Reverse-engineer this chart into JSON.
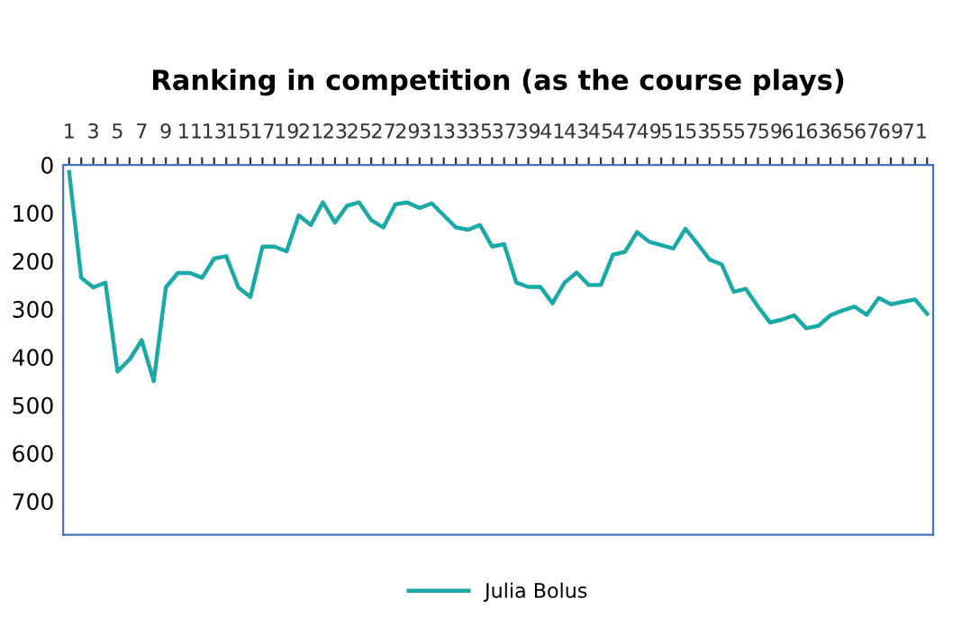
{
  "chart_data": {
    "type": "line",
    "title": "Ranking in competition (as the course plays)",
    "categories": [
      "1",
      null,
      "3",
      null,
      "5",
      null,
      "7",
      null,
      "9",
      null,
      "11",
      null,
      "13",
      null,
      "15",
      null,
      "17",
      null,
      "19",
      null,
      "21",
      null,
      "23",
      null,
      "25",
      null,
      "27",
      null,
      "29",
      null,
      "31",
      null,
      "33",
      null,
      "35",
      null,
      "37",
      null,
      "39",
      null,
      "41",
      null,
      "43",
      null,
      "45",
      null,
      "47",
      null,
      "49",
      null,
      "51",
      null,
      "53",
      null,
      "55",
      null,
      "57",
      null,
      "59",
      null,
      "61",
      null,
      "63",
      null,
      "65",
      null,
      "67",
      null,
      "69",
      null,
      "71",
      null
    ],
    "series": [
      {
        "name": "Julia Bolus",
        "color": "#1aaaa5",
        "values": [
          15,
          235,
          255,
          245,
          430,
          405,
          365,
          450,
          255,
          225,
          225,
          235,
          195,
          190,
          255,
          275,
          170,
          170,
          180,
          105,
          125,
          78,
          120,
          85,
          78,
          115,
          130,
          82,
          78,
          90,
          80,
          105,
          130,
          135,
          125,
          170,
          165,
          245,
          254,
          254,
          288,
          245,
          224,
          250,
          250,
          187,
          181,
          140,
          160,
          167,
          174,
          133,
          164,
          197,
          207,
          264,
          258,
          295,
          328,
          322,
          313,
          340,
          335,
          313,
          303,
          295,
          312,
          277,
          290,
          285,
          280,
          310
        ]
      }
    ],
    "ylim": [
      770,
      0
    ],
    "yticks": [
      0,
      100,
      200,
      300,
      400,
      500,
      600,
      700
    ],
    "grid": false,
    "legend": "bottom",
    "marker": "none",
    "line_style": "solid"
  }
}
